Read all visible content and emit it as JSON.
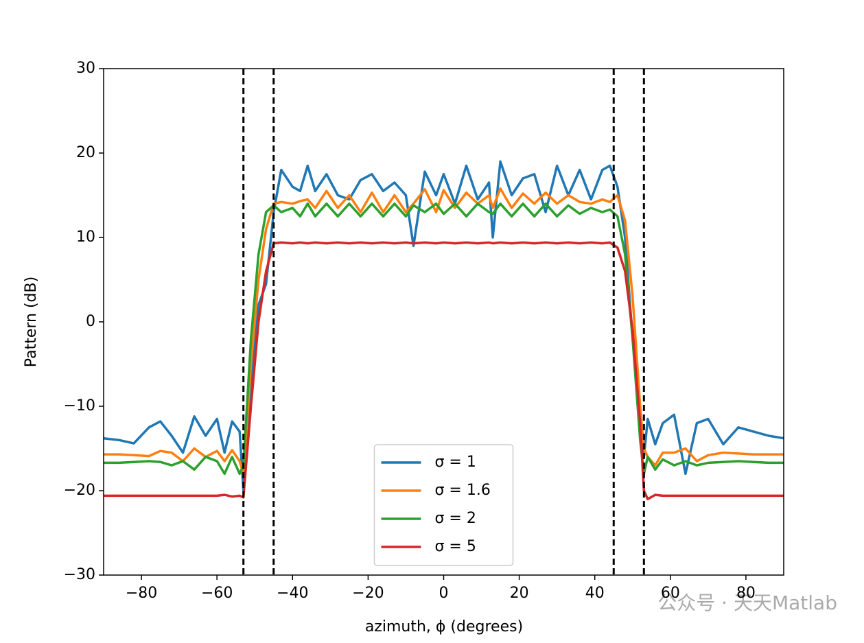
{
  "chart_data": {
    "type": "line",
    "xlabel": "azimuth, ϕ (degrees)",
    "ylabel": "Pattern (dB)",
    "watermark": "公众号 · 天天Matlab",
    "x": [
      -90,
      -86,
      -82,
      -78,
      -75,
      -72,
      -69,
      -66,
      -63,
      -60,
      -58,
      -56,
      -54,
      -53,
      -51,
      -49,
      -47,
      -45,
      -43,
      -40,
      -38,
      -36,
      -34,
      -31,
      -28,
      -25,
      -22,
      -19,
      -16,
      -13,
      -10,
      -8,
      -5,
      -2,
      0,
      3,
      6,
      9,
      12,
      13,
      15,
      18,
      21,
      24,
      27,
      30,
      33,
      36,
      39,
      42,
      44,
      46,
      48,
      50,
      52,
      53,
      54,
      56,
      58,
      61,
      64,
      67,
      70,
      74,
      78,
      82,
      86,
      90
    ],
    "series": [
      {
        "name": "σ = 1",
        "color": "#1f77b4",
        "values": [
          -13.8,
          -14,
          -14.4,
          -12.5,
          -11.8,
          -13.5,
          -15.5,
          -11.2,
          -13.5,
          -11.5,
          -15.5,
          -11.8,
          -13,
          -20,
          -8,
          2,
          4.5,
          13,
          18,
          16,
          15.5,
          18.5,
          15.5,
          17.5,
          15,
          14.5,
          16.8,
          17.5,
          15.5,
          16.5,
          15,
          9,
          17.8,
          15,
          17.5,
          14,
          18.5,
          14.5,
          16.5,
          10,
          19,
          15,
          17,
          17.5,
          13,
          18.5,
          15,
          18,
          14.5,
          18,
          18.5,
          16,
          10,
          -2,
          -12,
          -16,
          -11.5,
          -14.5,
          -12,
          -11,
          -18,
          -12,
          -11.5,
          -14.5,
          -12.5,
          -13,
          -13.5,
          -13.8
        ]
      },
      {
        "name": "σ = 1.6",
        "color": "#ff7f0e",
        "values": [
          -15.7,
          -15.7,
          -15.8,
          -15.9,
          -15.3,
          -15.5,
          -16.5,
          -15,
          -16,
          -15.3,
          -16.5,
          -15.2,
          -16.5,
          -18,
          -5,
          5,
          11,
          14,
          14.2,
          14,
          14.3,
          14.5,
          13.5,
          15.5,
          13.5,
          15,
          13,
          15.3,
          13,
          15,
          13,
          14,
          15.7,
          13,
          15.6,
          13.5,
          15.3,
          14,
          15,
          13.5,
          15.8,
          13.5,
          15.2,
          14,
          15.3,
          14,
          15,
          14.2,
          14,
          14.5,
          14.2,
          15,
          12,
          3,
          -10,
          -15,
          -16,
          -17,
          -15.5,
          -15.5,
          -15,
          -16.5,
          -15.8,
          -15.5,
          -15.6,
          -15.7,
          -15.7,
          -15.7
        ]
      },
      {
        "name": "σ = 2",
        "color": "#2ca02c",
        "values": [
          -16.7,
          -16.7,
          -16.6,
          -16.5,
          -16.6,
          -17,
          -16.5,
          -17.5,
          -16,
          -16.5,
          -18,
          -16,
          -18,
          -17,
          -2,
          8,
          13,
          13.8,
          13,
          13.5,
          12.5,
          14,
          12.5,
          14,
          12.5,
          14,
          12.5,
          14,
          12.5,
          14,
          12.5,
          13.8,
          13,
          14,
          12.8,
          14,
          12.5,
          14,
          13,
          12.8,
          14,
          12.5,
          14,
          12.5,
          14,
          12.5,
          13.8,
          12.8,
          13.5,
          13,
          13.3,
          12.5,
          8,
          -2,
          -14,
          -18,
          -16,
          -17.5,
          -16.3,
          -17,
          -16.5,
          -17,
          -16.7,
          -16.6,
          -16.5,
          -16.6,
          -16.7,
          -16.7
        ]
      },
      {
        "name": "σ = 5",
        "color": "#d62728",
        "values": [
          -20.6,
          -20.6,
          -20.6,
          -20.6,
          -20.6,
          -20.6,
          -20.6,
          -20.6,
          -20.6,
          -20.6,
          -20.5,
          -20.7,
          -20.6,
          -20.8,
          -10,
          0,
          6,
          9.3,
          9.4,
          9.3,
          9.4,
          9.3,
          9.4,
          9.3,
          9.4,
          9.3,
          9.4,
          9.3,
          9.4,
          9.3,
          9.4,
          9.3,
          9.4,
          9.3,
          9.4,
          9.3,
          9.4,
          9.3,
          9.4,
          9.3,
          9.4,
          9.3,
          9.4,
          9.3,
          9.4,
          9.3,
          9.4,
          9.3,
          9.4,
          9.3,
          9.4,
          8.8,
          6,
          -1,
          -12,
          -20,
          -21,
          -20.5,
          -20.6,
          -20.6,
          -20.6,
          -20.6,
          -20.6,
          -20.6,
          -20.6,
          -20.6,
          -20.6,
          -20.6
        ]
      }
    ],
    "reference_lines": [
      -53,
      -45,
      45,
      53
    ],
    "xlim": [
      -90,
      90
    ],
    "ylim": [
      -30,
      30
    ],
    "xticks": [
      {
        "value": -80,
        "label": "−80"
      },
      {
        "value": -60,
        "label": "−60"
      },
      {
        "value": -40,
        "label": "−40"
      },
      {
        "value": -20,
        "label": "−20"
      },
      0,
      20,
      40,
      60,
      80
    ],
    "yticks": [
      {
        "value": -30,
        "label": "−30"
      },
      {
        "value": -20,
        "label": "−20"
      },
      {
        "value": -10,
        "label": "−10"
      },
      0,
      10,
      20,
      30
    ],
    "legend": "lower center",
    "grid": false
  }
}
